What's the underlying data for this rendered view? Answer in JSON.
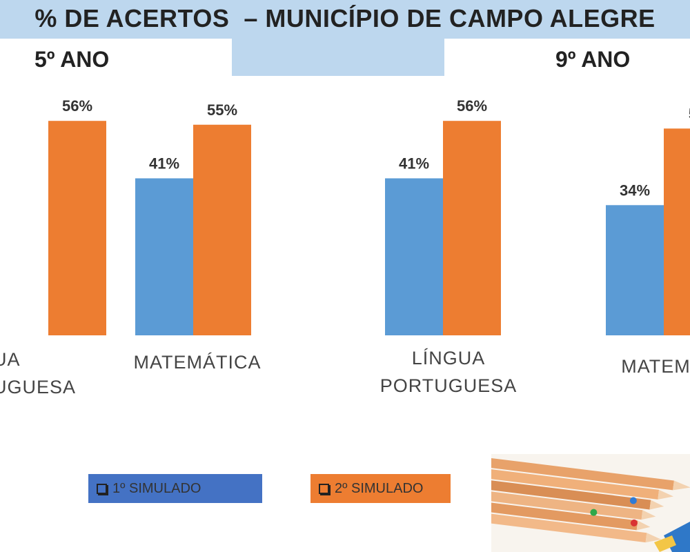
{
  "title": "% DE ACERTOS  – MUNICÍPIO DE CAMPO ALEGRE",
  "groups": {
    "left_label": "5º ANO",
    "right_label": "9º ANO"
  },
  "colors": {
    "series1": "#5b9bd5",
    "series2": "#ed7d31",
    "band": "#bdd7ee"
  },
  "chart_data": {
    "type": "bar",
    "title": "% DE ACERTOS  – MUNICÍPIO DE CAMPO ALEGRE",
    "groups": [
      "5º ANO",
      "9º ANO"
    ],
    "categories": [
      "LÍNGUA PORTUGUESA",
      "MATEMÁTICA",
      "LÍNGUA PORTUGUESA",
      "MATEMÁTICA"
    ],
    "visible_category_labels": [
      [
        "UA",
        "UGUESA"
      ],
      [
        "MATEMÁTICA"
      ],
      [
        "LÍNGUA",
        "PORTUGUESA"
      ],
      [
        "MATEMÁ"
      ]
    ],
    "series": [
      {
        "name": "1º SIMULADO",
        "values": [
          null,
          41,
          41,
          34
        ]
      },
      {
        "name": "2º SIMULADO",
        "values": [
          56,
          55,
          56,
          null
        ]
      }
    ],
    "visible_value_labels": [
      [
        "",
        "56%"
      ],
      [
        "41%",
        "55%"
      ],
      [
        "41%",
        "56%"
      ],
      [
        "34%",
        "5"
      ]
    ],
    "ylim": [
      0,
      100
    ],
    "grid": false,
    "legend_position": "bottom"
  },
  "legend": {
    "item1": "1º SIMULADO",
    "item2": "2º SIMULADO"
  }
}
